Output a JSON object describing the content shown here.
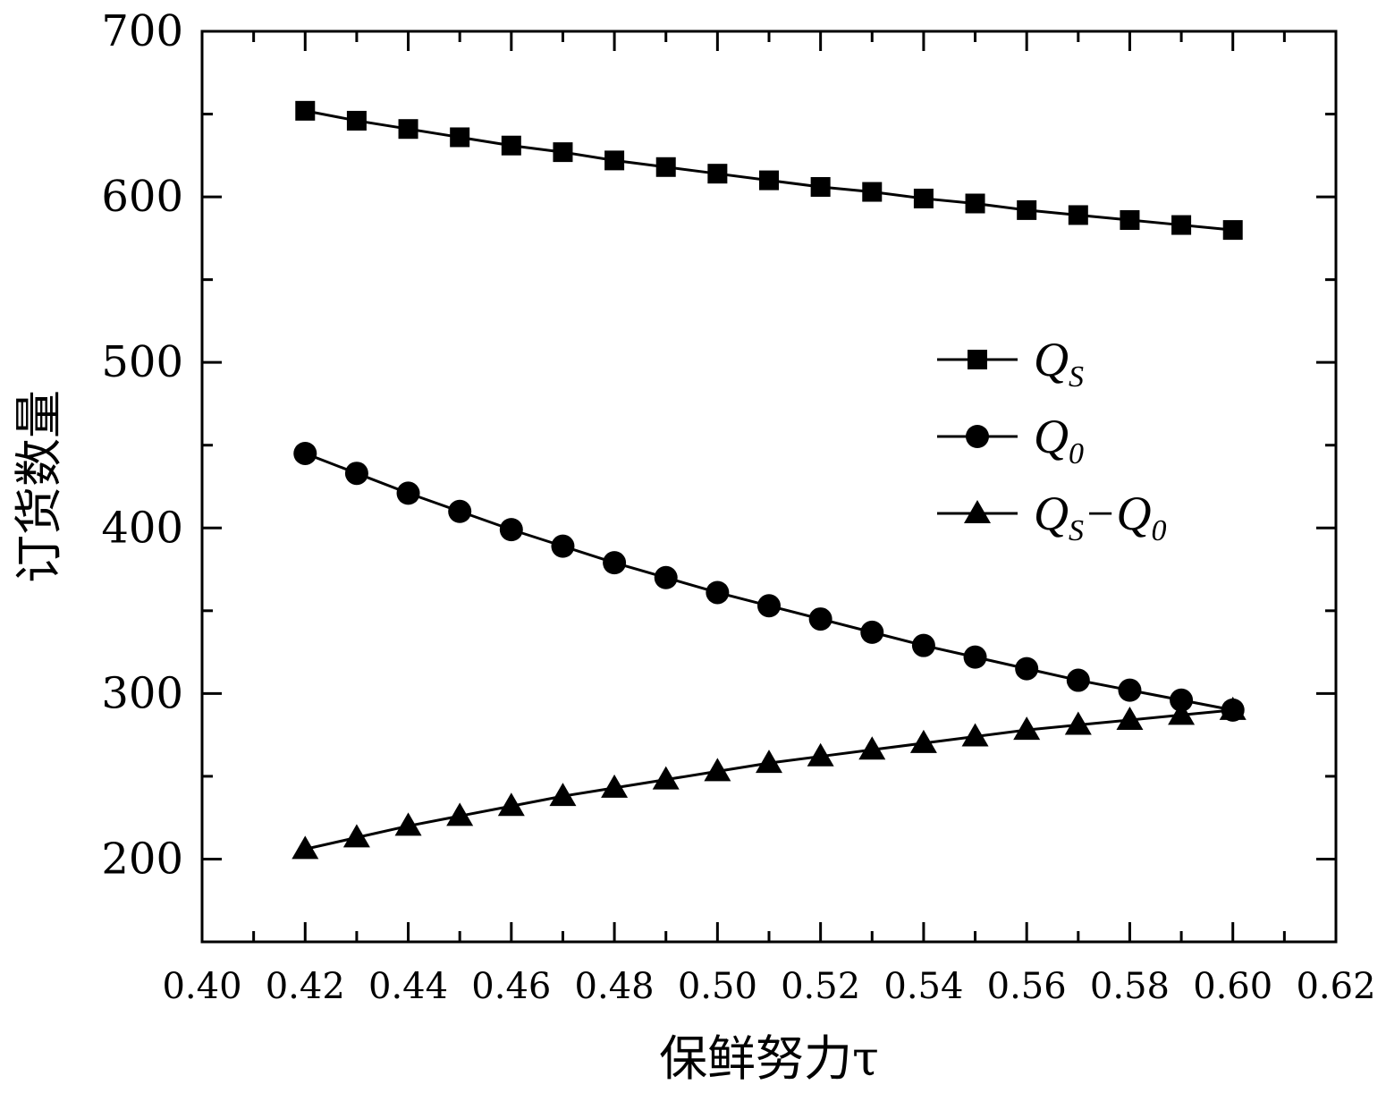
{
  "chart_data": {
    "type": "line",
    "title": "",
    "xlabel": "保鲜努力τ",
    "ylabel": "订货数量",
    "xlim": [
      0.4,
      0.62
    ],
    "ylim": [
      150,
      700
    ],
    "x_ticks": [
      "0.40",
      "0.42",
      "0.44",
      "0.46",
      "0.48",
      "0.50",
      "0.52",
      "0.54",
      "0.56",
      "0.58",
      "0.60",
      "0.62"
    ],
    "y_ticks": [
      "200",
      "300",
      "400",
      "500",
      "600",
      "700"
    ],
    "grid": false,
    "legend_position": "right-middle",
    "x": [
      0.42,
      0.43,
      0.44,
      0.45,
      0.46,
      0.47,
      0.48,
      0.49,
      0.5,
      0.51,
      0.52,
      0.53,
      0.54,
      0.55,
      0.56,
      0.57,
      0.58,
      0.59,
      0.6
    ],
    "series": [
      {
        "name": "Q_S",
        "label_main": "Q",
        "label_sub": "S",
        "label_rest": "",
        "label_sub2": "",
        "marker": "square",
        "values": [
          652,
          646,
          641,
          636,
          631,
          627,
          622,
          618,
          614,
          610,
          606,
          603,
          599,
          596,
          592,
          589,
          586,
          583,
          580
        ]
      },
      {
        "name": "Q_0",
        "label_main": "Q",
        "label_sub": "0",
        "label_rest": "",
        "label_sub2": "",
        "marker": "circle",
        "values": [
          445,
          433,
          421,
          410,
          399,
          389,
          379,
          370,
          361,
          353,
          345,
          337,
          329,
          322,
          315,
          308,
          302,
          296,
          290
        ]
      },
      {
        "name": "Q_S−Q_0",
        "label_main": "Q",
        "label_sub": "S",
        "label_rest": "−Q",
        "label_sub2": "0",
        "marker": "triangle",
        "values": [
          206,
          213,
          220,
          226,
          232,
          238,
          243,
          248,
          253,
          258,
          262,
          266,
          270,
          274,
          278,
          281,
          284,
          287,
          290
        ]
      }
    ]
  }
}
